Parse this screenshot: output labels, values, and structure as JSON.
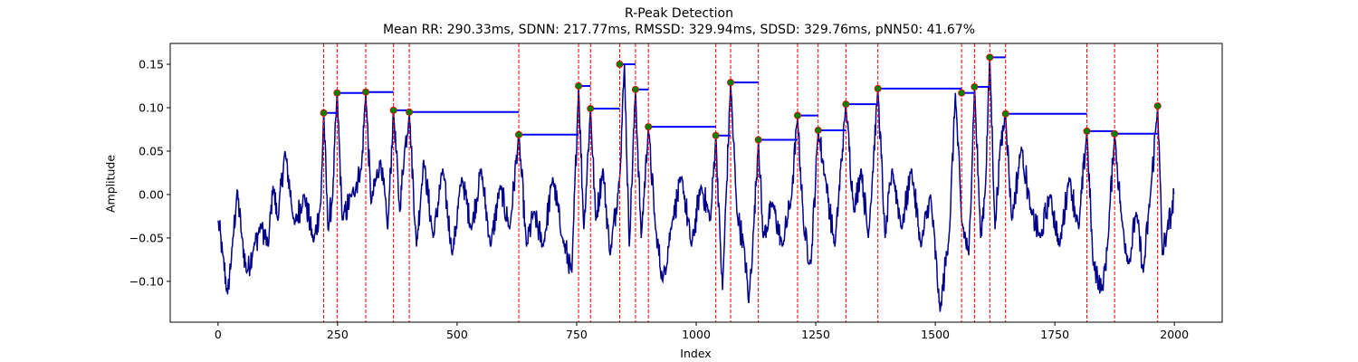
{
  "chart_data": {
    "type": "line",
    "title": "R-Peak Detection",
    "subtitle": "Mean RR: 290.33ms, SDNN: 217.77ms, RMSSD: 329.94ms, SDSD: 329.76ms, pNN50: 41.67%",
    "xlabel": "Index",
    "ylabel": "Amplitude",
    "xlim": [
      -100,
      2100
    ],
    "ylim": [
      -0.147,
      0.174
    ],
    "x_ticks": [
      0,
      250,
      500,
      750,
      1000,
      1250,
      1500,
      1750,
      2000
    ],
    "x_tick_labels": [
      "0",
      "250",
      "500",
      "750",
      "1000",
      "1250",
      "1500",
      "1750",
      "2000"
    ],
    "y_ticks": [
      -0.1,
      -0.05,
      0.0,
      0.05,
      0.1,
      0.15
    ],
    "y_tick_labels": [
      "−0.10",
      "−0.05",
      "0.00",
      "0.05",
      "0.10",
      "0.15"
    ],
    "grid": false,
    "colors": {
      "signal": "#00008b",
      "peak_line": "#ff0000",
      "peak_marker": "#008000",
      "rr_interval": "#0000ff"
    },
    "signal": {
      "name": "ECG signal",
      "n_points": 2000,
      "x": [
        0,
        10,
        20,
        30,
        40,
        50,
        60,
        75,
        90,
        105,
        115,
        125,
        140,
        160,
        180,
        200,
        215,
        221,
        230,
        240,
        249,
        260,
        280,
        300,
        309,
        320,
        340,
        355,
        367,
        380,
        390,
        400,
        415,
        430,
        450,
        470,
        490,
        510,
        530,
        550,
        570,
        590,
        610,
        629,
        645,
        660,
        680,
        700,
        720,
        740,
        754,
        765,
        779,
        790,
        805,
        820,
        840,
        850,
        860,
        873,
        885,
        900,
        915,
        930,
        950,
        970,
        990,
        1010,
        1030,
        1041,
        1050,
        1055,
        1072,
        1085,
        1100,
        1110,
        1120,
        1130,
        1140,
        1160,
        1180,
        1200,
        1212,
        1225,
        1240,
        1255,
        1270,
        1290,
        1313,
        1330,
        1345,
        1360,
        1380,
        1395,
        1410,
        1430,
        1450,
        1470,
        1490,
        1510,
        1530,
        1542,
        1555,
        1570,
        1582,
        1595,
        1605,
        1614,
        1625,
        1635,
        1647,
        1660,
        1680,
        1700,
        1720,
        1740,
        1760,
        1780,
        1800,
        1817,
        1830,
        1850,
        1860,
        1875,
        1890,
        1905,
        1920,
        1935,
        1950,
        1965,
        1975,
        1985,
        1995,
        2000
      ],
      "y": [
        -0.03,
        -0.07,
        -0.115,
        -0.06,
        0.005,
        -0.05,
        -0.09,
        -0.06,
        -0.035,
        -0.06,
        0.01,
        -0.03,
        0.05,
        -0.035,
        0.0,
        -0.055,
        -0.01,
        0.094,
        -0.04,
        0.0,
        0.117,
        -0.03,
        0.0,
        0.03,
        0.118,
        -0.01,
        0.04,
        -0.04,
        0.097,
        -0.02,
        0.05,
        0.095,
        -0.06,
        0.04,
        -0.05,
        0.03,
        -0.07,
        0.02,
        -0.04,
        0.03,
        -0.06,
        0.01,
        -0.04,
        0.069,
        -0.06,
        -0.02,
        -0.06,
        0.02,
        -0.05,
        -0.09,
        0.125,
        -0.04,
        0.099,
        -0.03,
        0.03,
        -0.07,
        0.02,
        0.15,
        -0.06,
        0.121,
        -0.05,
        0.078,
        -0.04,
        -0.1,
        -0.03,
        0.02,
        -0.06,
        0.01,
        -0.03,
        0.068,
        -0.05,
        -0.11,
        0.129,
        -0.02,
        -0.06,
        -0.125,
        -0.04,
        0.063,
        -0.05,
        -0.01,
        -0.06,
        0.0,
        0.091,
        -0.04,
        -0.08,
        0.074,
        0.02,
        -0.06,
        0.104,
        -0.02,
        0.03,
        -0.05,
        0.122,
        -0.05,
        0.03,
        -0.04,
        0.03,
        -0.06,
        0.0,
        -0.135,
        -0.04,
        0.117,
        -0.03,
        -0.07,
        0.124,
        -0.05,
        0.01,
        0.158,
        -0.04,
        0.05,
        0.093,
        -0.03,
        0.055,
        -0.02,
        -0.05,
        0.0,
        -0.06,
        0.02,
        -0.04,
        0.073,
        -0.08,
        -0.11,
        -0.06,
        0.07,
        -0.03,
        -0.08,
        -0.02,
        -0.09,
        0.0,
        0.102,
        -0.07,
        -0.04,
        -0.02,
        0.01
      ]
    },
    "peaks": {
      "name": "R-peaks",
      "x": [
        221,
        249,
        309,
        367,
        400,
        629,
        754,
        779,
        840,
        873,
        900,
        1041,
        1072,
        1130,
        1212,
        1255,
        1313,
        1380,
        1555,
        1582,
        1614,
        1647,
        1817,
        1875,
        1965
      ],
      "y": [
        0.094,
        0.117,
        0.118,
        0.097,
        0.095,
        0.069,
        0.125,
        0.099,
        0.15,
        0.121,
        0.078,
        0.068,
        0.129,
        0.063,
        0.091,
        0.074,
        0.104,
        0.122,
        0.117,
        0.124,
        0.158,
        0.093,
        0.073,
        0.07,
        0.102
      ]
    },
    "rr_intervals": {
      "name": "RR intervals",
      "x_start": [
        221,
        249,
        309,
        367,
        400,
        629,
        754,
        779,
        840,
        873,
        900,
        1041,
        1072,
        1130,
        1212,
        1255,
        1313,
        1380,
        1555,
        1582,
        1614,
        1647,
        1817,
        1875
      ],
      "x_end": [
        249,
        309,
        367,
        400,
        629,
        754,
        779,
        840,
        873,
        900,
        1041,
        1072,
        1130,
        1212,
        1255,
        1313,
        1380,
        1555,
        1582,
        1614,
        1647,
        1817,
        1875,
        1965
      ],
      "y": [
        0.094,
        0.117,
        0.118,
        0.097,
        0.095,
        0.069,
        0.125,
        0.099,
        0.15,
        0.121,
        0.078,
        0.068,
        0.129,
        0.063,
        0.091,
        0.074,
        0.104,
        0.122,
        0.117,
        0.124,
        0.158,
        0.093,
        0.073,
        0.07
      ]
    }
  }
}
